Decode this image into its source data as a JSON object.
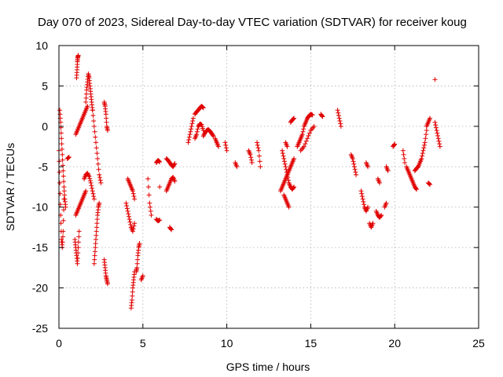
{
  "chart_data": {
    "type": "scatter",
    "title": "Day 070 of 2023, Sidereal Day-to-day VTEC variation (SDTVAR) for receiver koug",
    "xlabel": "GPS time / hours",
    "ylabel": "SDTVAR / TECUs",
    "xlim": [
      0,
      25
    ],
    "ylim": [
      -25,
      10
    ],
    "xticks": [
      0,
      5,
      10,
      15,
      20,
      25
    ],
    "yticks": [
      10,
      5,
      0,
      -5,
      -10,
      -15,
      -20,
      -25
    ],
    "grid": true,
    "marker": "+",
    "color": "#e00000",
    "series": [
      {
        "name": "SDTVAR",
        "segments": [
          {
            "x": [
              0.0,
              0.05,
              0.1,
              0.15,
              0.2,
              0.25,
              0.3
            ],
            "y": [
              -3,
              -7,
              -11,
              -14,
              -15,
              -13,
              -9
            ]
          },
          {
            "x": [
              0.05,
              0.1,
              0.15,
              0.2,
              0.25,
              0.3,
              0.35,
              0.4
            ],
            "y": [
              2,
              0.5,
              -1.5,
              -3.5,
              -5.5,
              -7.5,
              -9,
              -10
            ]
          },
          {
            "x": [
              0.5,
              0.6
            ],
            "y": [
              -4,
              -3.8
            ]
          },
          {
            "x": [
              0.95,
              1.0,
              1.05,
              1.1,
              1.15,
              1.2
            ],
            "y": [
              -14,
              -15,
              -16,
              -17,
              -15,
              -13
            ]
          },
          {
            "x": [
              1.0,
              1.1,
              1.2,
              1.3,
              1.4,
              1.5,
              1.6
            ],
            "y": [
              -11,
              -10.5,
              -10,
              -9.5,
              -9,
              -8.5,
              -8
            ]
          },
          {
            "x": [
              1.0,
              1.1,
              1.2,
              1.3,
              1.4,
              1.5,
              1.6,
              1.7
            ],
            "y": [
              -1,
              -0.5,
              0,
              0.5,
              1,
              1.5,
              2,
              2.5
            ]
          },
          {
            "x": [
              1.05,
              1.08,
              1.1,
              1.12,
              1.15
            ],
            "y": [
              6,
              7,
              8,
              8.5,
              8.8
            ]
          },
          {
            "x": [
              1.5,
              1.6,
              1.7,
              1.8,
              1.9,
              2.0,
              2.1
            ],
            "y": [
              -6.5,
              -6,
              -5.8,
              -6.2,
              -7,
              -8,
              -9
            ]
          },
          {
            "x": [
              1.6,
              1.65,
              1.7,
              1.75,
              1.8,
              1.85,
              1.9,
              1.95,
              2.0
            ],
            "y": [
              3,
              4.5,
              5.5,
              6.5,
              6,
              5,
              4,
              3,
              2
            ]
          },
          {
            "x": [
              2.0,
              2.1,
              2.2,
              2.3,
              2.4,
              2.5
            ],
            "y": [
              2,
              0,
              -2,
              -4,
              -6,
              -7
            ]
          },
          {
            "x": [
              2.1,
              2.15,
              2.2,
              2.25,
              2.3,
              2.35,
              2.4
            ],
            "y": [
              -17,
              -15.5,
              -14,
              -12.5,
              -11,
              -10,
              -9.5
            ]
          },
          {
            "x": [
              2.7,
              2.75,
              2.8,
              2.85,
              2.9
            ],
            "y": [
              -16.5,
              -17.5,
              -18.5,
              -19,
              -19.5
            ]
          },
          {
            "x": [
              2.7,
              2.75,
              2.8,
              2.85,
              2.9
            ],
            "y": [
              3,
              2.5,
              1.5,
              0,
              -0.5
            ]
          },
          {
            "x": [
              4.1,
              4.2,
              4.3,
              4.4,
              4.5
            ],
            "y": [
              -6.5,
              -7,
              -7.5,
              -8,
              -9
            ]
          },
          {
            "x": [
              4.0,
              4.1,
              4.2,
              4.3,
              4.4,
              4.5
            ],
            "y": [
              -9.5,
              -10.5,
              -11.5,
              -12.5,
              -13,
              -12
            ]
          },
          {
            "x": [
              4.3,
              4.35,
              4.4,
              4.45,
              4.5
            ],
            "y": [
              -22.5,
              -21.5,
              -20,
              -19,
              -18
            ]
          },
          {
            "x": [
              4.6,
              4.65,
              4.7,
              4.75,
              4.8
            ],
            "y": [
              -18,
              -17.5,
              -16,
              -15,
              -14.5
            ]
          },
          {
            "x": [
              4.9,
              5.0
            ],
            "y": [
              -19,
              -18.5
            ]
          },
          {
            "x": [
              5.3,
              5.4,
              5.5
            ],
            "y": [
              -6.5,
              -9.5,
              -11
            ]
          },
          {
            "x": [
              5.8,
              5.9,
              6.0
            ],
            "y": [
              -4.5,
              -4.2,
              -4.4
            ]
          },
          {
            "x": [
              5.8,
              5.9,
              6.0
            ],
            "y": [
              -11.5,
              -11.7,
              -11.6
            ]
          },
          {
            "x": [
              6.0
            ],
            "y": [
              -7.5
            ]
          },
          {
            "x": [
              6.4,
              6.5,
              6.6,
              6.7,
              6.8,
              6.9
            ],
            "y": [
              -4,
              -4.2,
              -4.5,
              -4.8,
              -5,
              -4.6
            ]
          },
          {
            "x": [
              6.4,
              6.5,
              6.6,
              6.7,
              6.8,
              6.9
            ],
            "y": [
              -8,
              -7.5,
              -7,
              -6.5,
              -6.3,
              -6.8
            ]
          },
          {
            "x": [
              6.6,
              6.7
            ],
            "y": [
              -12.5,
              -12.8
            ]
          },
          {
            "x": [
              7.7,
              7.8,
              7.9,
              8.0
            ],
            "y": [
              -2,
              -1,
              0,
              1
            ]
          },
          {
            "x": [
              8.1,
              8.2,
              8.3,
              8.4,
              8.5,
              8.6
            ],
            "y": [
              1.5,
              1.8,
              2,
              2.3,
              2.5,
              2.3
            ]
          },
          {
            "x": [
              8.1,
              8.2,
              8.3,
              8.4,
              8.5,
              8.6
            ],
            "y": [
              -1.5,
              -1,
              0,
              0.3,
              0.2,
              -0.5
            ]
          },
          {
            "x": [
              8.6,
              8.7,
              8.8,
              8.9,
              9.0,
              9.1,
              9.2
            ],
            "y": [
              -1.2,
              -0.8,
              -0.5,
              -0.4,
              -0.6,
              -0.9,
              -1.2
            ]
          },
          {
            "x": [
              9.3,
              9.4,
              9.5
            ],
            "y": [
              -1.5,
              -2,
              -2.5
            ]
          },
          {
            "x": [
              9.9,
              10.0
            ],
            "y": [
              -2,
              -3
            ]
          },
          {
            "x": [
              10.5,
              10.6
            ],
            "y": [
              -4.5,
              -5
            ]
          },
          {
            "x": [
              11.3,
              11.4,
              11.5
            ],
            "y": [
              -3,
              -3.5,
              -4.5
            ]
          },
          {
            "x": [
              11.8,
              11.9,
              12.0
            ],
            "y": [
              -2,
              -3,
              -5
            ]
          },
          {
            "x": [
              13.2,
              13.3,
              13.4,
              13.5,
              13.6,
              13.7,
              13.8,
              13.9,
              14.0
            ],
            "y": [
              -8,
              -7.5,
              -7,
              -6.5,
              -6,
              -5.5,
              -5,
              -4.5,
              -4
            ]
          },
          {
            "x": [
              13.3,
              13.4,
              13.5,
              13.6,
              13.7,
              13.8,
              13.9,
              14.0
            ],
            "y": [
              -3,
              -4,
              -5,
              -6,
              -7,
              -7.5,
              -7.8,
              -7.5
            ]
          },
          {
            "x": [
              13.4,
              13.5,
              13.6,
              13.7
            ],
            "y": [
              -8.5,
              -9,
              -9.5,
              -10
            ]
          },
          {
            "x": [
              13.5,
              13.6
            ],
            "y": [
              -2,
              -2.5
            ]
          },
          {
            "x": [
              13.8,
              13.9,
              14.0
            ],
            "y": [
              0.5,
              0.8,
              1
            ]
          },
          {
            "x": [
              14.2,
              14.3,
              14.4,
              14.5,
              14.6,
              14.7,
              14.8,
              14.9,
              15.0,
              15.1
            ],
            "y": [
              -2.5,
              -2,
              -1.5,
              -1,
              0,
              0.5,
              1,
              1.3,
              1.5,
              1.4
            ]
          },
          {
            "x": [
              14.4,
              14.6,
              14.8,
              15.0,
              15.2
            ],
            "y": [
              -3,
              -2.5,
              -1.5,
              -0.5,
              0
            ]
          },
          {
            "x": [
              15.6,
              15.7
            ],
            "y": [
              1.5,
              1.2
            ]
          },
          {
            "x": [
              16.6,
              16.7,
              16.8
            ],
            "y": [
              2,
              1,
              0
            ]
          },
          {
            "x": [
              17.4,
              17.5,
              17.6,
              17.7
            ],
            "y": [
              -3.5,
              -4,
              -5,
              -6
            ]
          },
          {
            "x": [
              18.0,
              18.1,
              18.2,
              18.3,
              18.4
            ],
            "y": [
              -8,
              -9,
              -10,
              -10.5,
              -10
            ]
          },
          {
            "x": [
              18.5,
              18.6,
              18.7
            ],
            "y": [
              -12,
              -12.5,
              -12
            ]
          },
          {
            "x": [
              18.3,
              18.4
            ],
            "y": [
              -4.5,
              -5
            ]
          },
          {
            "x": [
              18.9,
              19.0,
              19.1,
              19.2
            ],
            "y": [
              -10.5,
              -11,
              -11.3,
              -11
            ]
          },
          {
            "x": [
              19.0,
              19.1
            ],
            "y": [
              -6.5,
              -7
            ]
          },
          {
            "x": [
              19.4,
              19.5
            ],
            "y": [
              -10,
              -9.5
            ]
          },
          {
            "x": [
              19.5,
              19.6
            ],
            "y": [
              -5,
              -5.5
            ]
          },
          {
            "x": [
              19.9,
              20.0
            ],
            "y": [
              -2.5,
              -2.2
            ]
          },
          {
            "x": [
              20.5,
              20.6
            ],
            "y": [
              -3,
              -4.5
            ]
          },
          {
            "x": [
              20.7,
              20.8,
              20.9,
              21.0,
              21.1,
              21.2,
              21.3
            ],
            "y": [
              -5,
              -5.5,
              -6,
              -6.5,
              -7,
              -7.5,
              -7.8
            ]
          },
          {
            "x": [
              21.2,
              21.3,
              21.4,
              21.5,
              21.6,
              21.7,
              21.8,
              21.9
            ],
            "y": [
              -5.5,
              -5.2,
              -5,
              -4.5,
              -4,
              -3,
              -2,
              -0.5
            ]
          },
          {
            "x": [
              21.9,
              22.0,
              22.1
            ],
            "y": [
              0,
              0.5,
              1
            ]
          },
          {
            "x": [
              22.0,
              22.1
            ],
            "y": [
              -7,
              -7.2
            ]
          },
          {
            "x": [
              22.4,
              22.5,
              22.6,
              22.7
            ],
            "y": [
              0.5,
              -0.5,
              -1.5,
              -2.5
            ]
          },
          {
            "x": [
              22.4
            ],
            "y": [
              5.8
            ]
          }
        ]
      }
    ]
  }
}
